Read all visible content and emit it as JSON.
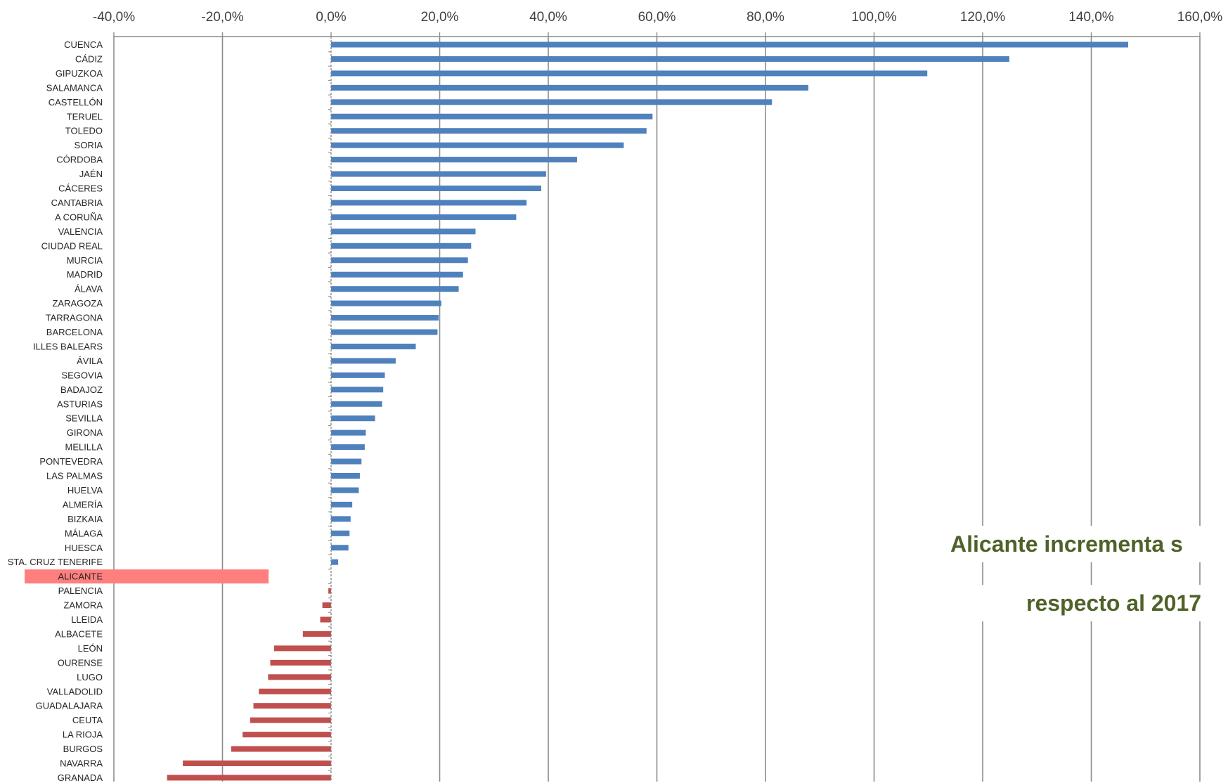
{
  "chart_data": {
    "type": "bar",
    "orientation": "horizontal",
    "xlim": [
      -40,
      160
    ],
    "x_ticks": [
      -40,
      -20,
      0,
      20,
      40,
      60,
      80,
      100,
      120,
      140,
      160
    ],
    "x_tick_labels": [
      "-40,0%",
      "-20,0%",
      "0,0%",
      "20,0%",
      "40,0%",
      "60,0%",
      "80,0%",
      "100,0%",
      "120,0%",
      "140,0%",
      "160,0%"
    ],
    "axis_position": "top",
    "grid": true,
    "positive_color": "#4f81bd",
    "negative_color": "#c0504d",
    "highlight_color": "#ff7f7f",
    "highlight_category": "ALICANTE",
    "categories": [
      "CUENCA",
      "CÁDIZ",
      "GIPUZKOA",
      "SALAMANCA",
      "CASTELLÓN",
      "TERUEL",
      "TOLEDO",
      "SORIA",
      "CÓRDOBA",
      "JAÉN",
      "CÁCERES",
      "CANTABRIA",
      "A CORUÑA",
      "VALENCIA",
      "CIUDAD REAL",
      "MURCIA",
      "MADRID",
      "ÁLAVA",
      "ZARAGOZA",
      "TARRAGONA",
      "BARCELONA",
      "ILLES BALEARS",
      "ÁVILA",
      "SEGOVIA",
      "BADAJOZ",
      "ASTURIAS",
      "SEVILLA",
      "GIRONA",
      "MELILLA",
      "PONTEVEDRA",
      "LAS PALMAS",
      "HUELVA",
      "ALMERÍA",
      "BIZKAIA",
      "MÁLAGA",
      "HUESCA",
      "STA. CRUZ TENERIFE",
      "ALICANTE",
      "PALENCIA",
      "ZAMORA",
      "LLEIDA",
      "ALBACETE",
      "LEÓN",
      "OURENSE",
      "LUGO",
      "VALLADOLID",
      "GUADALAJARA",
      "CEUTA",
      "LA RIOJA",
      "BURGOS",
      "NAVARRA",
      "GRANADA"
    ],
    "values": [
      146.8,
      124.9,
      109.8,
      87.9,
      81.2,
      59.2,
      58.1,
      53.9,
      45.3,
      39.6,
      38.7,
      36.0,
      34.1,
      26.6,
      25.8,
      25.2,
      24.3,
      23.5,
      20.3,
      19.8,
      19.6,
      15.6,
      11.9,
      9.9,
      9.6,
      9.4,
      8.1,
      6.4,
      6.2,
      5.6,
      5.3,
      5.1,
      3.9,
      3.6,
      3.4,
      3.2,
      1.3,
      0.0,
      -0.5,
      -1.6,
      -2.0,
      -5.2,
      -10.5,
      -11.2,
      -11.6,
      -13.3,
      -14.3,
      -14.9,
      -16.3,
      -18.4,
      -27.3,
      -30.2
    ]
  },
  "annotation": {
    "line1": "Alicante incrementa s",
    "line2": "respecto al 2017"
  }
}
